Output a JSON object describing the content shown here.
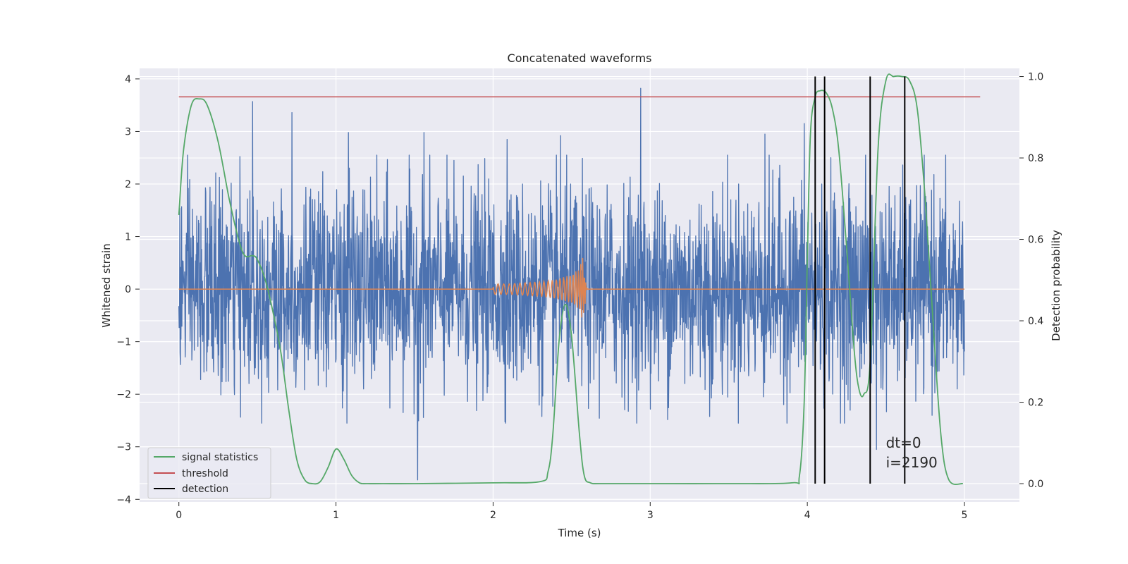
{
  "chart_data": {
    "type": "line",
    "title": "Concatenated waveforms",
    "xlabel": "Time (s)",
    "ylabel": "Whitened strain",
    "ylabel_right": "Detection probability",
    "xlim": [
      -0.25,
      5.35
    ],
    "ylim": [
      -4.05,
      4.2
    ],
    "ylim_right": [
      -0.045,
      1.02
    ],
    "xticks": [
      0,
      1,
      2,
      3,
      4,
      5
    ],
    "xtick_labels": [
      "0",
      "1",
      "2",
      "3",
      "4",
      "5"
    ],
    "yticks": [
      -4,
      -3,
      -2,
      -1,
      0,
      1,
      2,
      3,
      4
    ],
    "ytick_labels": [
      "−4",
      "−3",
      "−2",
      "−1",
      "0",
      "1",
      "2",
      "3",
      "4"
    ],
    "yticks_right": [
      0.0,
      0.2,
      0.4,
      0.6,
      0.8,
      1.0
    ],
    "ytick_right_labels": [
      "0.0",
      "0.2",
      "0.4",
      "0.6",
      "0.8",
      "1.0"
    ],
    "grid": true,
    "legend_position": "lower-left",
    "series": [
      {
        "name": "",
        "kind": "noise",
        "axis": "left",
        "color": "#4c72b0",
        "x_range": [
          0,
          5
        ],
        "envelope_abs_max": 3.82,
        "max_points": [
          {
            "x": 0.47,
            "y": 3.57
          },
          {
            "x": 0.72,
            "y": 3.36
          },
          {
            "x": 1.08,
            "y": 2.98
          },
          {
            "x": 1.52,
            "y": -3.63
          },
          {
            "x": 1.56,
            "y": 2.98
          },
          {
            "x": 2.09,
            "y": 2.85
          },
          {
            "x": 2.43,
            "y": 2.92
          },
          {
            "x": 2.94,
            "y": 3.82
          },
          {
            "x": 3.73,
            "y": 2.95
          },
          {
            "x": 3.98,
            "y": 3.15
          },
          {
            "x": 4.44,
            "y": -3.05
          }
        ]
      },
      {
        "name": "",
        "kind": "chirp",
        "axis": "left",
        "color": "#dd8452",
        "x": [
          0.0,
          2.0,
          2.1,
          2.2,
          2.3,
          2.4,
          2.5,
          2.55,
          2.57,
          2.6,
          5.0
        ],
        "amplitude": [
          0.0,
          0.1,
          0.1,
          0.12,
          0.14,
          0.18,
          0.28,
          0.4,
          0.6,
          0.0,
          0.0
        ]
      },
      {
        "name": "signal statistics",
        "axis": "right",
        "color": "#55a868",
        "x": [
          0.0,
          0.03,
          0.08,
          0.13,
          0.18,
          0.25,
          0.32,
          0.38,
          0.42,
          0.47,
          0.5,
          0.55,
          0.6,
          0.65,
          0.7,
          0.75,
          0.8,
          0.85,
          0.9,
          0.95,
          1.0,
          1.05,
          1.1,
          1.15,
          1.2,
          1.3,
          1.5,
          2.0,
          2.3,
          2.35,
          2.38,
          2.42,
          2.46,
          2.5,
          2.55,
          2.58,
          2.62,
          2.7,
          3.0,
          3.5,
          3.9,
          3.95,
          3.98,
          4.0,
          4.02,
          4.05,
          4.08,
          4.12,
          4.16,
          4.2,
          4.25,
          4.3,
          4.33,
          4.36,
          4.4,
          4.45,
          4.5,
          4.55,
          4.6,
          4.65,
          4.7,
          4.75,
          4.8,
          4.85,
          4.9,
          4.99
        ],
        "values": [
          0.66,
          0.82,
          0.93,
          0.945,
          0.93,
          0.84,
          0.7,
          0.6,
          0.56,
          0.56,
          0.55,
          0.5,
          0.42,
          0.32,
          0.18,
          0.06,
          0.01,
          0.0,
          0.005,
          0.04,
          0.085,
          0.06,
          0.02,
          0.002,
          0.0,
          0.0,
          0.0,
          0.002,
          0.005,
          0.03,
          0.12,
          0.35,
          0.44,
          0.36,
          0.12,
          0.02,
          0.002,
          0.0,
          0.0,
          0.0,
          0.002,
          0.02,
          0.2,
          0.55,
          0.86,
          0.95,
          0.965,
          0.96,
          0.92,
          0.82,
          0.58,
          0.32,
          0.23,
          0.22,
          0.3,
          0.82,
          0.99,
          1.0,
          1.0,
          0.99,
          0.92,
          0.7,
          0.4,
          0.12,
          0.01,
          0.0
        ]
      },
      {
        "name": "threshold",
        "axis": "right",
        "color": "#c44e52",
        "x": [
          0.0,
          5.1
        ],
        "values": [
          0.95,
          0.95
        ]
      },
      {
        "name": "detection",
        "axis": "right",
        "color": "#000000",
        "kind": "vlines",
        "x": [
          4.05,
          4.11,
          4.4,
          4.62
        ],
        "ymin": 0.0,
        "ymax": 1.0
      }
    ],
    "annotation": {
      "lines": [
        "dt=0",
        "i=2190"
      ],
      "x": 4.5,
      "y": -3.02
    }
  }
}
